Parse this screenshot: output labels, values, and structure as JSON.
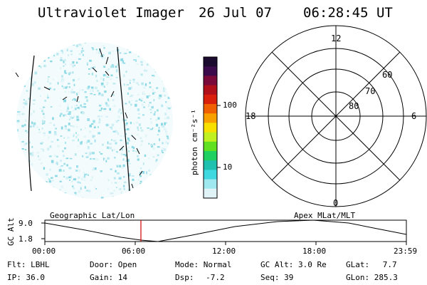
{
  "header": {
    "instrument": "Ultraviolet Imager",
    "date": "26 Jul 07",
    "time": "06:28:45 UT"
  },
  "colorbar": {
    "label": "photon cm⁻²s⁻¹",
    "ticks": [
      "100",
      "10"
    ],
    "colors": [
      "#1a0a2e",
      "#3a0a4a",
      "#7a0a3a",
      "#b0101a",
      "#d8200a",
      "#f06000",
      "#f8a000",
      "#f8e000",
      "#c0f020",
      "#60e020",
      "#20d060",
      "#20c0b0",
      "#40d8e0",
      "#a0e8f0",
      "#e0f4f8"
    ]
  },
  "polar_plot": {
    "mlt_labels": {
      "top": "12",
      "left": "18",
      "right": "6",
      "bottom": "0"
    },
    "lat_labels": [
      "60",
      "70",
      "80"
    ]
  },
  "altitude_plot": {
    "left_title": "Geographic Lat/Lon",
    "right_title": "Apex MLat/MLT",
    "y_axis_label": "GC Alt",
    "y_ticks": [
      "9.0",
      "1.8"
    ],
    "x_ticks": [
      "00:00",
      "06:00",
      "12:00",
      "18:00",
      "23:59"
    ],
    "current_marker_color": "#d00000"
  },
  "status": {
    "row1": [
      {
        "label": "Flt:",
        "value": "LBHL"
      },
      {
        "label": "Door:",
        "value": "Open"
      },
      {
        "label": "Mode:",
        "value": "Normal"
      },
      {
        "label": "GC Alt:",
        "value": "3.0 Re"
      },
      {
        "label": "GLat:",
        "value": "7.7"
      }
    ],
    "row2": [
      {
        "label": "IP:",
        "value": "36.0"
      },
      {
        "label": "Gain:",
        "value": "14"
      },
      {
        "label": "Dsp:",
        "value": "-7.2"
      },
      {
        "label": "Seq:",
        "value": "39"
      },
      {
        "label": "GLon:",
        "value": "285.3"
      }
    ]
  }
}
